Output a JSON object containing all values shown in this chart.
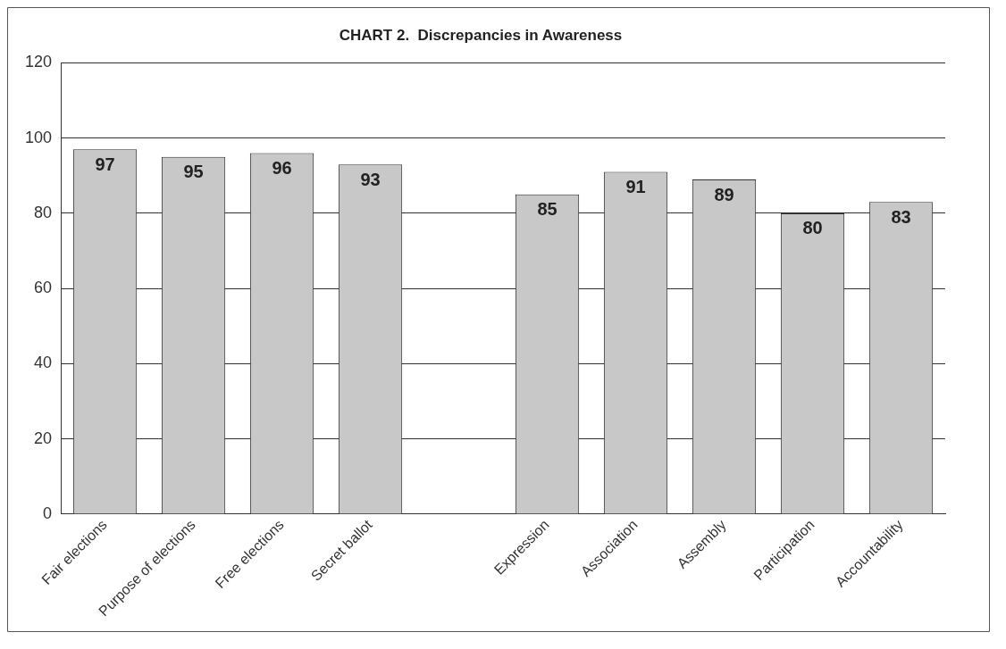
{
  "chart_data": {
    "type": "bar",
    "title": "CHART 2.  Discrepancies in Awareness",
    "categories": [
      "Fair elections",
      "Purpose of elections",
      "Free elections",
      "Secret ballot",
      null,
      "Expression",
      "Association",
      "Assembly",
      "Participation",
      "Accountability"
    ],
    "values": [
      97,
      95,
      96,
      93,
      null,
      85,
      91,
      89,
      80,
      83
    ],
    "color": "#c8c8c8",
    "ylim": [
      0,
      120
    ],
    "yticks": [
      0,
      20,
      40,
      60,
      80,
      100,
      120
    ],
    "grid": "y",
    "data_labels": true,
    "legend": false
  }
}
